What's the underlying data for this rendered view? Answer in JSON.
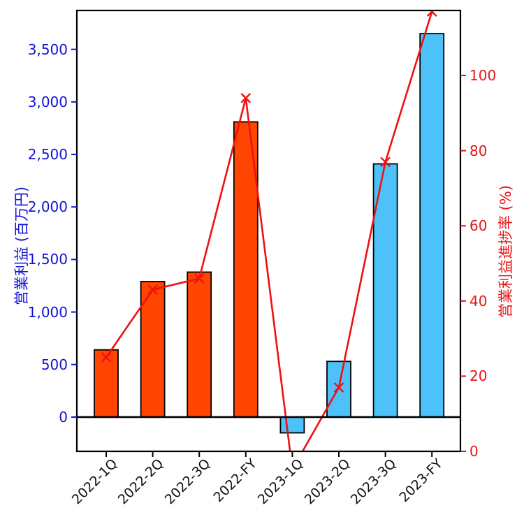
{
  "chart_data": {
    "type": "bar",
    "subtype": "bar+line dual axis",
    "title": "",
    "categories": [
      "2022-1Q",
      "2022-2Q",
      "2022-3Q",
      "2022-FY",
      "2023-1Q",
      "2023-2Q",
      "2023-3Q",
      "2023-FY"
    ],
    "series": [
      {
        "name": "営業利益",
        "type": "bar",
        "yaxis": "left",
        "unit": "百万円",
        "values": [
          640,
          1290,
          1380,
          2810,
          -150,
          530,
          2410,
          3650
        ],
        "colors": [
          "#FF4500",
          "#FF4500",
          "#FF4500",
          "#FF4500",
          "#4CC2F9",
          "#4CC2F9",
          "#4CC2F9",
          "#4CC2F9"
        ]
      },
      {
        "name": "営業利益進捗率",
        "type": "line",
        "yaxis": "right",
        "unit": "%",
        "marker": "x",
        "color": "#EE1111",
        "values": [
          25,
          43,
          46,
          94,
          -4.8,
          17,
          77,
          117
        ]
      }
    ],
    "xlabel": "",
    "ylabel_left": "営業利益 (百万円)",
    "ylabel_right": "営業利益進捗率 (%)",
    "ylim_left": [
      -326,
      3870
    ],
    "ylim_right": [
      0,
      117.3
    ],
    "yticks_left": [
      {
        "v": 0,
        "label": "0"
      },
      {
        "v": 500,
        "label": "500"
      },
      {
        "v": 1000,
        "label": "1,000"
      },
      {
        "v": 1500,
        "label": "1,500"
      },
      {
        "v": 2000,
        "label": "2,000"
      },
      {
        "v": 2500,
        "label": "2,500"
      },
      {
        "v": 3000,
        "label": "3,000"
      },
      {
        "v": 3500,
        "label": "3,500"
      }
    ],
    "yticks_right": [
      {
        "v": 0,
        "label": "0"
      },
      {
        "v": 20,
        "label": "20"
      },
      {
        "v": 40,
        "label": "40"
      },
      {
        "v": 60,
        "label": "60"
      },
      {
        "v": 80,
        "label": "80"
      },
      {
        "v": 100,
        "label": "100"
      }
    ],
    "zero_line": true,
    "grid": false,
    "legend": "none",
    "colors": {
      "left_axis": "#1212D6",
      "right_axis": "#E81414",
      "bar_2022": "#FF4500",
      "bar_2023": "#4CC2F9",
      "line": "#EE1111",
      "frame": "#000000",
      "xtick_label": "#111111",
      "background": "#FFFFFF"
    }
  }
}
